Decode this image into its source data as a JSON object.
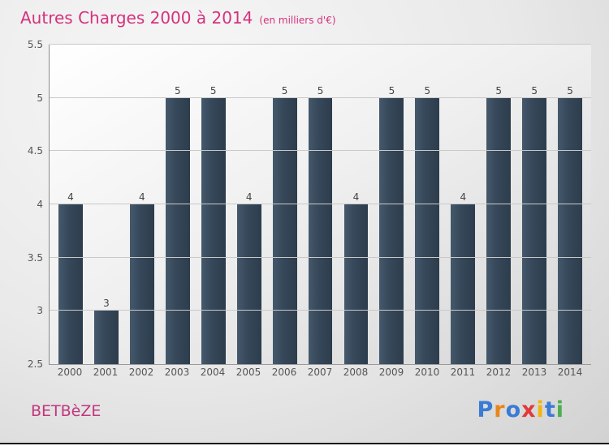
{
  "title": "Autres Charges 2000 à 2014",
  "subtitle": "(en milliers d'€)",
  "footer": {
    "company": "BETBèZE",
    "logo_letters": [
      {
        "char": "P",
        "color": "#3a7bd5"
      },
      {
        "char": "r",
        "color": "#e8861b"
      },
      {
        "char": "o",
        "color": "#3a7bd5"
      },
      {
        "char": "x",
        "color": "#e03a3a"
      },
      {
        "char": "i",
        "color": "#f2b50f"
      },
      {
        "char": "t",
        "color": "#3a7bd5"
      },
      {
        "char": "i",
        "color": "#4caf50"
      }
    ]
  },
  "colors": {
    "accent_pink": "#d5317e",
    "bar": "#36485a",
    "tick_label": "#555555",
    "value_label": "#444444"
  },
  "chart_data": {
    "type": "bar",
    "title": "Autres Charges 2000 à 2014",
    "subtitle": "(en milliers d'€)",
    "categories": [
      "2000",
      "2001",
      "2002",
      "2003",
      "2004",
      "2005",
      "2006",
      "2007",
      "2008",
      "2009",
      "2010",
      "2011",
      "2012",
      "2013",
      "2014"
    ],
    "values": [
      4,
      3,
      4,
      5,
      5,
      4,
      5,
      5,
      4,
      5,
      5,
      4,
      5,
      5,
      5
    ],
    "xlabel": "",
    "ylabel": "",
    "ylim": [
      2.5,
      5.5
    ],
    "yticks": [
      2.5,
      3,
      3.5,
      4,
      4.5,
      5,
      5.5
    ],
    "grid": true,
    "legend": false
  }
}
